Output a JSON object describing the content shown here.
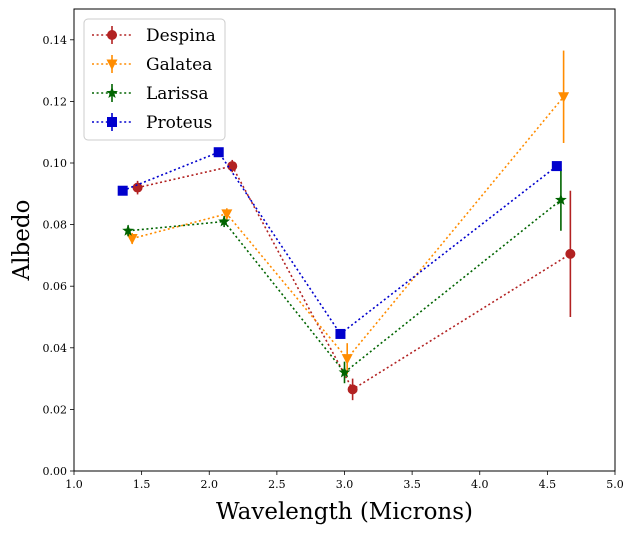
{
  "chart_data": {
    "type": "line",
    "title": "",
    "xlabel": "Wavelength (Microns)",
    "ylabel": "Albedo",
    "xlim": [
      1.0,
      5.0
    ],
    "ylim": [
      0.0,
      0.15
    ],
    "xticks": [
      "1.0",
      "1.5",
      "2.0",
      "2.5",
      "3.0",
      "3.5",
      "4.0",
      "4.5",
      "5.0"
    ],
    "yticks": [
      "0.00",
      "0.02",
      "0.04",
      "0.06",
      "0.08",
      "0.10",
      "0.12",
      "0.14"
    ],
    "grid": false,
    "legend_position": "top-left",
    "series": [
      {
        "name": "Despina",
        "color": "#b22222",
        "marker": "circle",
        "x": [
          1.47,
          2.17,
          3.06,
          4.67
        ],
        "y": [
          0.092,
          0.099,
          0.0265,
          0.0705
        ],
        "yerr": [
          0.0022,
          0.002,
          0.0035,
          0.0205
        ]
      },
      {
        "name": "Galatea",
        "color": "#ff8c00",
        "marker": "triangle-down",
        "x": [
          1.43,
          2.13,
          3.02,
          4.62
        ],
        "y": [
          0.0755,
          0.0835,
          0.0365,
          0.1215
        ],
        "yerr": [
          0.0018,
          0.0018,
          0.005,
          0.015
        ]
      },
      {
        "name": "Larissa",
        "color": "#006400",
        "marker": "star",
        "x": [
          1.4,
          2.11,
          3.0,
          4.6
        ],
        "y": [
          0.078,
          0.081,
          0.032,
          0.088
        ],
        "yerr": [
          0.0018,
          0.0018,
          0.0035,
          0.01
        ]
      },
      {
        "name": "Proteus",
        "color": "#0000cd",
        "marker": "square",
        "x": [
          1.36,
          2.07,
          2.97,
          4.57
        ],
        "y": [
          0.091,
          0.1035,
          0.0445,
          0.099
        ],
        "yerr": [
          0.0015,
          0.0015,
          0.0015,
          0.0015
        ]
      }
    ]
  }
}
